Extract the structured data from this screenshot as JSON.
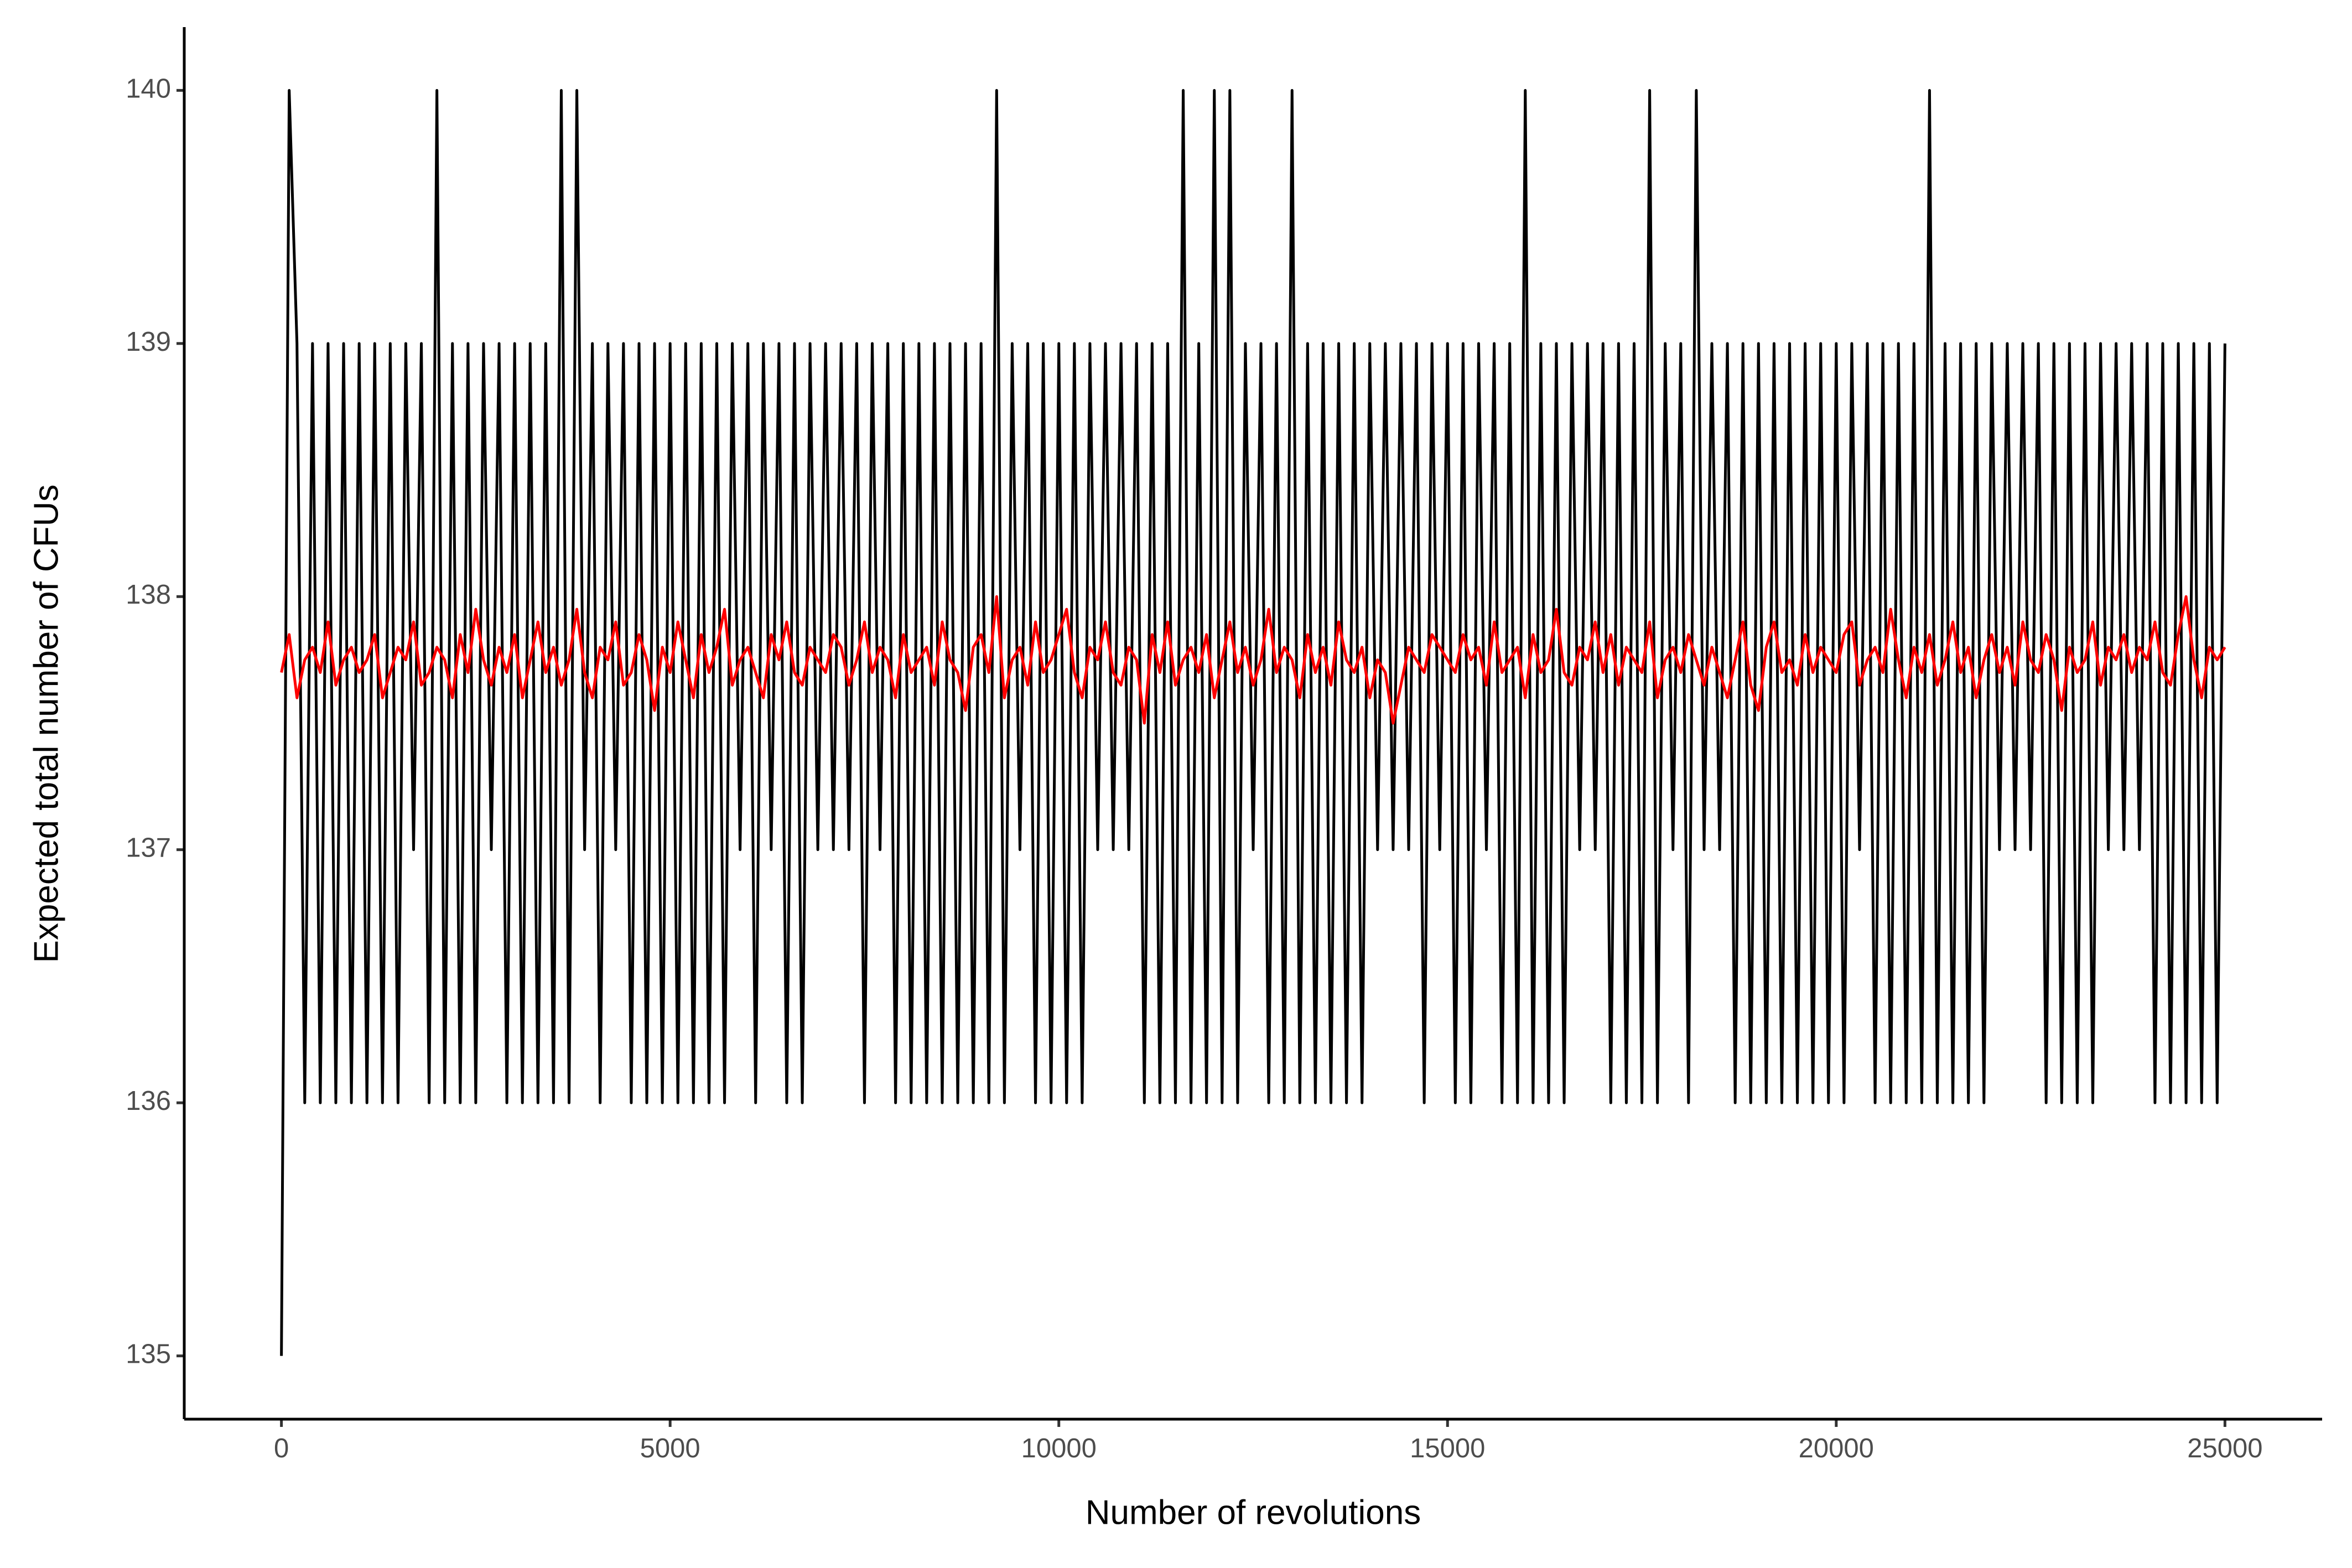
{
  "chart_data": {
    "type": "line",
    "xlabel": "Number of revolutions",
    "ylabel": "Expected total number of CFUs",
    "xlim": [
      -1250,
      26250
    ],
    "ylim": [
      134.75,
      140.25
    ],
    "xticks": [
      0,
      5000,
      10000,
      15000,
      20000,
      25000
    ],
    "yticks": [
      135,
      136,
      137,
      138,
      139,
      140
    ],
    "grid": false,
    "x": [
      0,
      100,
      200,
      300,
      400,
      500,
      600,
      700,
      800,
      900,
      1000,
      1100,
      1200,
      1300,
      1400,
      1500,
      1600,
      1700,
      1800,
      1900,
      2000,
      2100,
      2200,
      2300,
      2400,
      2500,
      2600,
      2700,
      2800,
      2900,
      3000,
      3100,
      3200,
      3300,
      3400,
      3500,
      3600,
      3700,
      3800,
      3900,
      4000,
      4100,
      4200,
      4300,
      4400,
      4500,
      4600,
      4700,
      4800,
      4900,
      5000,
      5100,
      5200,
      5300,
      5400,
      5500,
      5600,
      5700,
      5800,
      5900,
      6000,
      6100,
      6200,
      6300,
      6400,
      6500,
      6600,
      6700,
      6800,
      6900,
      7000,
      7100,
      7200,
      7300,
      7400,
      7500,
      7600,
      7700,
      7800,
      7900,
      8000,
      8100,
      8200,
      8300,
      8400,
      8500,
      8600,
      8700,
      8800,
      8900,
      9000,
      9100,
      9200,
      9300,
      9400,
      9500,
      9600,
      9700,
      9800,
      9900,
      10000,
      10100,
      10200,
      10300,
      10400,
      10500,
      10600,
      10700,
      10800,
      10900,
      11000,
      11100,
      11200,
      11300,
      11400,
      11500,
      11600,
      11700,
      11800,
      11900,
      12000,
      12100,
      12200,
      12300,
      12400,
      12500,
      12600,
      12700,
      12800,
      12900,
      13000,
      13100,
      13200,
      13300,
      13400,
      13500,
      13600,
      13700,
      13800,
      13900,
      14000,
      14100,
      14200,
      14300,
      14400,
      14500,
      14600,
      14700,
      14800,
      14900,
      15000,
      15100,
      15200,
      15300,
      15400,
      15500,
      15600,
      15700,
      15800,
      15900,
      16000,
      16100,
      16200,
      16300,
      16400,
      16500,
      16600,
      16700,
      16800,
      16900,
      17000,
      17100,
      17200,
      17300,
      17400,
      17500,
      17600,
      17700,
      17800,
      17900,
      18000,
      18100,
      18200,
      18300,
      18400,
      18500,
      18600,
      18700,
      18800,
      18900,
      19000,
      19100,
      19200,
      19300,
      19400,
      19500,
      19600,
      19700,
      19800,
      19900,
      20000,
      20100,
      20200,
      20300,
      20400,
      20500,
      20600,
      20700,
      20800,
      20900,
      21000,
      21100,
      21200,
      21300,
      21400,
      21500,
      21600,
      21700,
      21800,
      21900,
      22000,
      22100,
      22200,
      22300,
      22400,
      22500,
      22600,
      22700,
      22800,
      22900,
      23000,
      23100,
      23200,
      23300,
      23400,
      23500,
      23600,
      23700,
      23800,
      23900,
      24000,
      24100,
      24200,
      24300,
      24400,
      24500,
      24600,
      24700,
      24800,
      24900,
      25000
    ],
    "series": [
      {
        "color": "#000000",
        "values": [
          135,
          140,
          139,
          136,
          139,
          136,
          139,
          136,
          139,
          136,
          139,
          136,
          139,
          136,
          139,
          136,
          139,
          137,
          139,
          136,
          140,
          136,
          139,
          136,
          139,
          136,
          139,
          137,
          139,
          136,
          139,
          136,
          139,
          136,
          139,
          136,
          140,
          136,
          140,
          137,
          139,
          136,
          139,
          137,
          139,
          136,
          139,
          136,
          139,
          136,
          139,
          136,
          139,
          136,
          139,
          136,
          139,
          136,
          139,
          137,
          139,
          136,
          139,
          137,
          139,
          136,
          139,
          136,
          139,
          137,
          139,
          137,
          139,
          137,
          139,
          136,
          139,
          137,
          139,
          136,
          139,
          136,
          139,
          136,
          139,
          136,
          139,
          136,
          139,
          136,
          139,
          136,
          140,
          136,
          139,
          137,
          139,
          136,
          139,
          136,
          139,
          136,
          139,
          136,
          139,
          137,
          139,
          137,
          139,
          137,
          139,
          136,
          139,
          136,
          139,
          136,
          140,
          136,
          139,
          136,
          140,
          136,
          140,
          136,
          139,
          137,
          139,
          136,
          139,
          136,
          140,
          136,
          139,
          136,
          139,
          136,
          139,
          136,
          139,
          136,
          139,
          137,
          139,
          137,
          139,
          137,
          139,
          136,
          139,
          137,
          139,
          136,
          139,
          136,
          139,
          137,
          139,
          136,
          139,
          136,
          140,
          136,
          139,
          136,
          139,
          136,
          139,
          137,
          139,
          137,
          139,
          136,
          139,
          136,
          139,
          136,
          140,
          136,
          139,
          137,
          139,
          136,
          140,
          137,
          139,
          137,
          139,
          136,
          139,
          136,
          139,
          136,
          139,
          136,
          139,
          136,
          139,
          136,
          139,
          136,
          139,
          136,
          139,
          137,
          139,
          136,
          139,
          136,
          139,
          136,
          139,
          136,
          140,
          136,
          139,
          136,
          139,
          136,
          139,
          136,
          139,
          137,
          139,
          137,
          139,
          137,
          139,
          136,
          139,
          136,
          139,
          136,
          139,
          136,
          139,
          137,
          139,
          137,
          139,
          137,
          139,
          136,
          139,
          136,
          139,
          136,
          139,
          136,
          139,
          136,
          139
        ]
      },
      {
        "color": "#ff0000",
        "values": [
          137.7,
          137.85,
          137.6,
          137.75,
          137.8,
          137.7,
          137.9,
          137.65,
          137.75,
          137.8,
          137.7,
          137.75,
          137.85,
          137.6,
          137.7,
          137.8,
          137.75,
          137.9,
          137.65,
          137.7,
          137.8,
          137.75,
          137.6,
          137.85,
          137.7,
          137.95,
          137.75,
          137.65,
          137.8,
          137.7,
          137.85,
          137.6,
          137.75,
          137.9,
          137.7,
          137.8,
          137.65,
          137.75,
          137.95,
          137.7,
          137.6,
          137.8,
          137.75,
          137.9,
          137.65,
          137.7,
          137.85,
          137.75,
          137.55,
          137.8,
          137.7,
          137.9,
          137.75,
          137.6,
          137.85,
          137.7,
          137.8,
          137.95,
          137.65,
          137.75,
          137.8,
          137.7,
          137.6,
          137.85,
          137.75,
          137.9,
          137.7,
          137.65,
          137.8,
          137.75,
          137.7,
          137.85,
          137.8,
          137.65,
          137.75,
          137.9,
          137.7,
          137.8,
          137.75,
          137.6,
          137.85,
          137.7,
          137.75,
          137.8,
          137.65,
          137.9,
          137.75,
          137.7,
          137.55,
          137.8,
          137.85,
          137.7,
          138.0,
          137.6,
          137.75,
          137.8,
          137.65,
          137.9,
          137.7,
          137.75,
          137.85,
          137.95,
          137.7,
          137.6,
          137.8,
          137.75,
          137.9,
          137.7,
          137.65,
          137.8,
          137.75,
          137.5,
          137.85,
          137.7,
          137.9,
          137.65,
          137.75,
          137.8,
          137.7,
          137.85,
          137.6,
          137.75,
          137.9,
          137.7,
          137.8,
          137.65,
          137.75,
          137.95,
          137.7,
          137.8,
          137.75,
          137.6,
          137.85,
          137.7,
          137.8,
          137.65,
          137.9,
          137.75,
          137.7,
          137.8,
          137.6,
          137.75,
          137.7,
          137.5,
          137.65,
          137.8,
          137.75,
          137.7,
          137.85,
          137.8,
          137.75,
          137.7,
          137.85,
          137.75,
          137.8,
          137.65,
          137.9,
          137.7,
          137.75,
          137.8,
          137.6,
          137.85,
          137.7,
          137.75,
          137.95,
          137.7,
          137.65,
          137.8,
          137.75,
          137.9,
          137.7,
          137.85,
          137.65,
          137.8,
          137.75,
          137.7,
          137.9,
          137.6,
          137.75,
          137.8,
          137.7,
          137.85,
          137.75,
          137.65,
          137.8,
          137.7,
          137.6,
          137.75,
          137.9,
          137.65,
          137.55,
          137.8,
          137.9,
          137.7,
          137.75,
          137.65,
          137.85,
          137.7,
          137.8,
          137.75,
          137.7,
          137.85,
          137.9,
          137.65,
          137.75,
          137.8,
          137.7,
          137.95,
          137.75,
          137.6,
          137.8,
          137.7,
          137.85,
          137.65,
          137.75,
          137.9,
          137.7,
          137.8,
          137.6,
          137.75,
          137.85,
          137.7,
          137.8,
          137.65,
          137.9,
          137.75,
          137.7,
          137.85,
          137.75,
          137.55,
          137.8,
          137.7,
          137.75,
          137.9,
          137.65,
          137.8,
          137.75,
          137.85,
          137.7,
          137.8,
          137.75,
          137.9,
          137.7,
          137.65,
          137.85,
          138.0,
          137.75,
          137.6,
          137.8,
          137.75,
          137.8
        ]
      }
    ]
  }
}
